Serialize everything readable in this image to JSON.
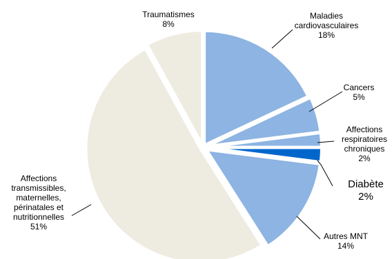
{
  "chart_data": {
    "type": "pie",
    "title": "",
    "exploded": true,
    "slices": [
      {
        "label": [
          "Maladies",
          "cardiovasculaires",
          "18%"
        ],
        "value": 18,
        "color": "#8db4e2"
      },
      {
        "label": [
          "Cancers",
          "5%"
        ],
        "value": 5,
        "color": "#8db4e2"
      },
      {
        "label": [
          "Affections",
          "respiratoires",
          "chroniques",
          "2%"
        ],
        "value": 2,
        "color": "#8db4e2"
      },
      {
        "label": [
          "Diabète",
          "2%"
        ],
        "value": 2,
        "color": "#0066cc"
      },
      {
        "label": [
          "Autres MNT",
          "14%"
        ],
        "value": 14,
        "color": "#8db4e2"
      },
      {
        "label": [
          "Affections",
          "transmissibles,",
          "maternelles,",
          "périnatales et",
          "nutritionnelles",
          "51%"
        ],
        "value": 51,
        "color": "#eeebe1"
      },
      {
        "label": [
          "Traumatismes",
          "8%"
        ],
        "value": 8,
        "color": "#eeebe1"
      }
    ]
  }
}
